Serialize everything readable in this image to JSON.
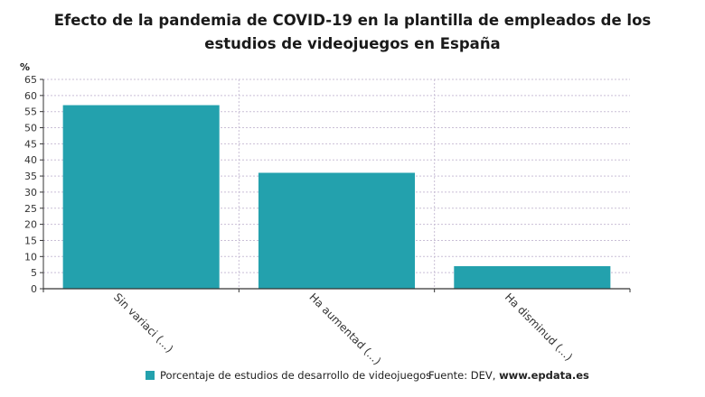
{
  "colors": {
    "bar": "#23a1ad",
    "grid": "#c9bfd6",
    "axis": "#333333"
  },
  "chart_data": {
    "type": "bar",
    "title": "Efecto de la pandemia de COVID-19 en la plantilla de empleados de los estudios de videojuegos en España",
    "ylabel": "%",
    "xlabel": "",
    "ylim": [
      0,
      65
    ],
    "y_ticks": [
      0,
      5,
      10,
      15,
      20,
      25,
      30,
      35,
      40,
      45,
      50,
      55,
      60,
      65
    ],
    "grid": true,
    "legend_position": "bottom",
    "categories": [
      "Sin variaci (...)",
      "Ha aumentad (...)",
      "Ha disminud (...)"
    ],
    "series": [
      {
        "name": "Porcentaje de estudios de desarrollo de videojuegos",
        "values": [
          57,
          36,
          7
        ]
      }
    ]
  },
  "footer": {
    "source_prefix": "Fuente: DEV,",
    "source_site": "www.epdata.es"
  }
}
